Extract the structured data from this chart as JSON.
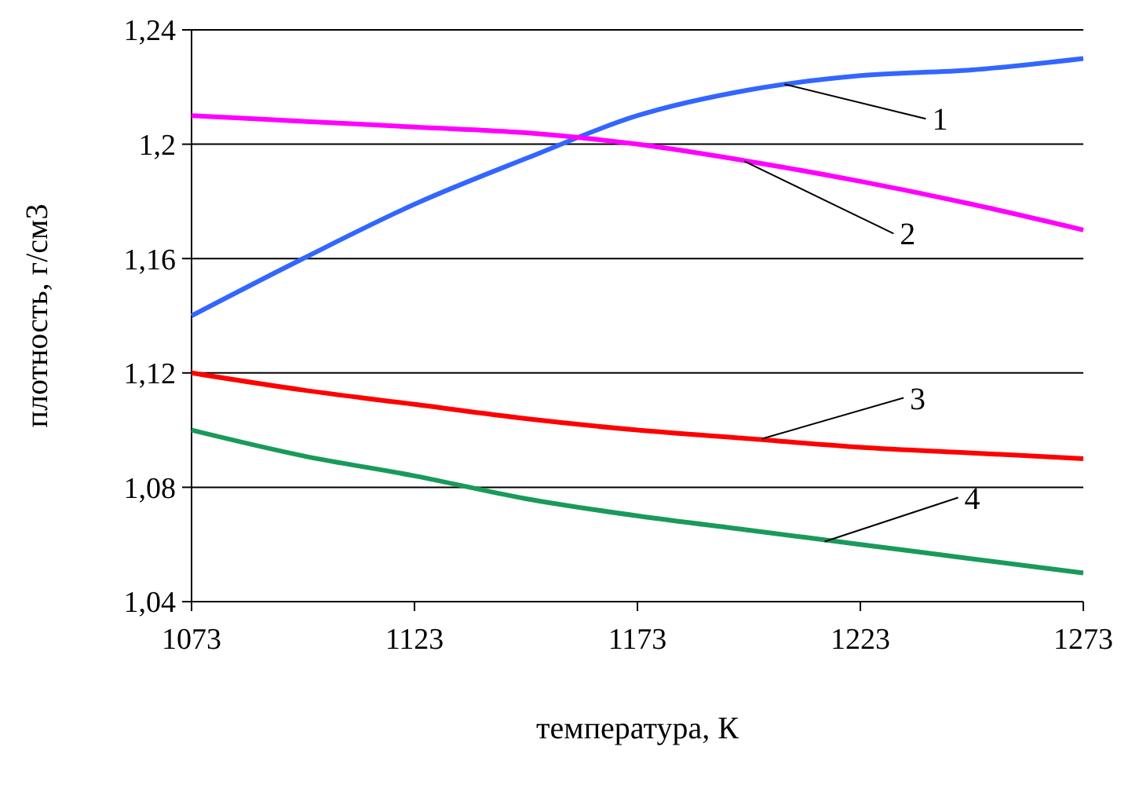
{
  "chart_data": {
    "type": "line",
    "xlabel": "температура, К",
    "ylabel": "плотность, г/см3",
    "x": [
      1073,
      1098,
      1123,
      1148,
      1173,
      1198,
      1223,
      1248,
      1273
    ],
    "series": [
      {
        "color": "#3366ff",
        "values": [
          1.14,
          1.16,
          1.179,
          1.195,
          1.21,
          1.219,
          1.224,
          1.226,
          1.23
        ]
      },
      {
        "color": "#ff00ff",
        "values": [
          1.21,
          1.208,
          1.206,
          1.204,
          1.2,
          1.194,
          1.187,
          1.179,
          1.17
        ]
      },
      {
        "color": "#ff0000",
        "values": [
          1.12,
          1.114,
          1.109,
          1.104,
          1.1,
          1.097,
          1.094,
          1.092,
          1.09
        ]
      },
      {
        "color": "#1a9a5a",
        "values": [
          1.1,
          1.091,
          1.084,
          1.076,
          1.07,
          1.065,
          1.06,
          1.055,
          1.05
        ]
      }
    ],
    "annotations": [
      {
        "text": "1",
        "x": 1206,
        "y": 1.221
      },
      {
        "text": "2",
        "x": 1197,
        "y": 1.194
      },
      {
        "text": "3",
        "x": 1201,
        "y": 1.097
      },
      {
        "text": "4",
        "x": 1215,
        "y": 1.061
      }
    ],
    "xlim": [
      1073,
      1273
    ],
    "xticks": [
      1073,
      1123,
      1173,
      1223,
      1273
    ],
    "ylim": [
      1.04,
      1.24
    ],
    "yticks": [
      {
        "value": 1.04,
        "label": "1,04"
      },
      {
        "value": 1.08,
        "label": "1,08"
      },
      {
        "value": 1.12,
        "label": "1,12"
      },
      {
        "value": 1.16,
        "label": "1,16"
      },
      {
        "value": 1.2,
        "label": "1,2"
      },
      {
        "value": 1.24,
        "label": "1,24"
      }
    ],
    "grid": "y",
    "marker": "none",
    "line_style": "solid"
  }
}
